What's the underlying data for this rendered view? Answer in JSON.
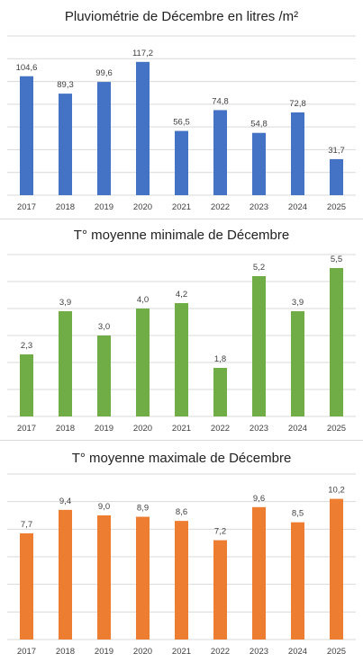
{
  "colors": {
    "blue": "#4472C4",
    "green": "#70AD47",
    "orange": "#ED7D31",
    "grid": "#d9d9d9",
    "text": "#404040"
  },
  "chart_data": [
    {
      "type": "bar",
      "title": "Pluviométrie de Décembre en litres /m²",
      "categories": [
        "2017",
        "2018",
        "2019",
        "2020",
        "2021",
        "2022",
        "2023",
        "2024",
        "2025"
      ],
      "values": [
        104.6,
        89.3,
        99.6,
        117.2,
        56.5,
        74.8,
        54.8,
        72.8,
        31.7
      ],
      "value_labels": [
        "104,6",
        "89,3",
        "99,6",
        "117,2",
        "56,5",
        "74,8",
        "54,8",
        "72,8",
        "31,7"
      ],
      "ylim": [
        0,
        140
      ],
      "grid": true,
      "color": "#4472C4"
    },
    {
      "type": "bar",
      "title": "T° moyenne minimale de Décembre",
      "categories": [
        "2017",
        "2018",
        "2019",
        "2020",
        "2021",
        "2022",
        "2023",
        "2024",
        "2025"
      ],
      "values": [
        2.3,
        3.9,
        3.0,
        4.0,
        4.2,
        1.8,
        5.2,
        3.9,
        5.5
      ],
      "value_labels": [
        "2,3",
        "3,9",
        "3,0",
        "4,0",
        "4,2",
        "1,8",
        "5,2",
        "3,9",
        "5,5"
      ],
      "ylim": [
        0,
        6
      ],
      "grid": true,
      "color": "#70AD47"
    },
    {
      "type": "bar",
      "title": "T° moyenne maximale de Décembre",
      "categories": [
        "2017",
        "2018",
        "2019",
        "2020",
        "2021",
        "2022",
        "2023",
        "2024",
        "2025"
      ],
      "values": [
        7.7,
        9.4,
        9.0,
        8.9,
        8.6,
        7.2,
        9.6,
        8.5,
        10.2
      ],
      "value_labels": [
        "7,7",
        "9,4",
        "9,0",
        "8,9",
        "8,6",
        "7,2",
        "9,6",
        "8,5",
        "10,2"
      ],
      "ylim": [
        0,
        12
      ],
      "grid": true,
      "color": "#ED7D31"
    }
  ]
}
